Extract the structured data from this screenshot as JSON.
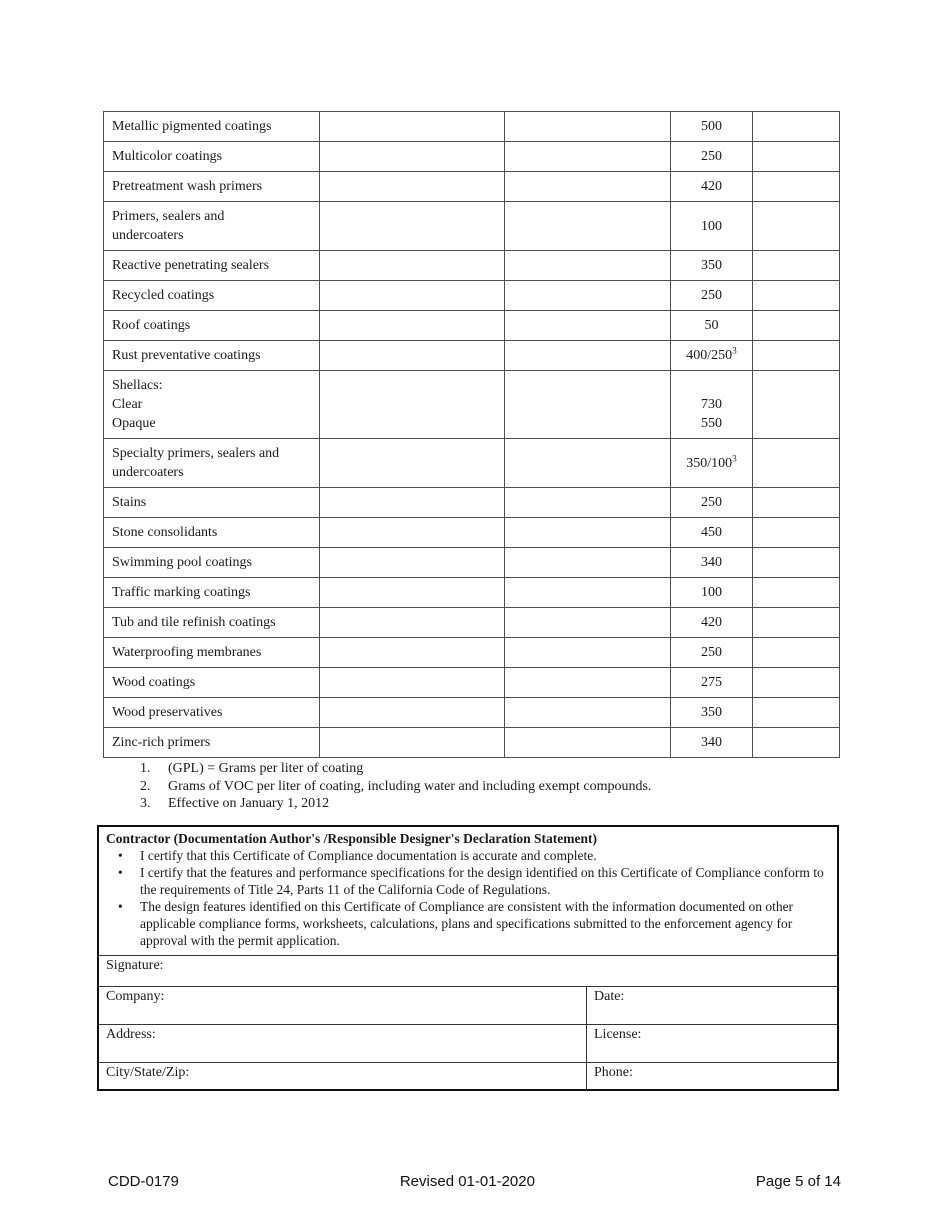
{
  "colors": {
    "page_bg": "#ffffff",
    "text": "#1a1a1a",
    "table_border": "#4f4f4f",
    "box_border": "#111111"
  },
  "table": {
    "rows": [
      {
        "name": "Metallic pigmented coatings",
        "value": "500"
      },
      {
        "name": "Multicolor coatings",
        "value": "250"
      },
      {
        "name": "Pretreatment wash primers",
        "value": "420"
      },
      {
        "name": "Primers, sealers and\nundercoaters",
        "value": "100"
      },
      {
        "name": "Reactive penetrating sealers",
        "value": "350"
      },
      {
        "name": "Recycled coatings",
        "value": "250"
      },
      {
        "name": "Roof coatings",
        "value": "50"
      },
      {
        "name": "Rust preventative coatings",
        "value": "400/250^3"
      },
      {
        "name": "Shellacs:\nClear\nOpaque",
        "value": "730\n550"
      },
      {
        "name": "Specialty primers, sealers and\nundercoaters",
        "value": "350/100^3"
      },
      {
        "name": "Stains",
        "value": "250"
      },
      {
        "name": "Stone consolidants",
        "value": "450"
      },
      {
        "name": "Swimming pool coatings",
        "value": "340"
      },
      {
        "name": "Traffic marking coatings",
        "value": "100"
      },
      {
        "name": "Tub and tile refinish coatings",
        "value": "420"
      },
      {
        "name": "Waterproofing membranes",
        "value": "250"
      },
      {
        "name": "Wood coatings",
        "value": "275"
      },
      {
        "name": "Wood preservatives",
        "value": "350"
      },
      {
        "name": "Zinc-rich primers",
        "value": "340"
      }
    ]
  },
  "footnotes": [
    {
      "num": "1.",
      "text": "(GPL) = Grams per liter of coating"
    },
    {
      "num": "2.",
      "text": "Grams of VOC per liter of coating, including water and including exempt compounds."
    },
    {
      "num": "3.",
      "text": "Effective on January 1, 2012"
    }
  ],
  "declaration": {
    "title": "Contractor (Documentation Author's /Responsible Designer's Declaration Statement)",
    "bullets": [
      "I certify that this Certificate of Compliance documentation is accurate and complete.",
      "I certify that the features and performance specifications for the design identified on this Certificate of Compliance conform to the requirements of Title 24, Parts 11 of the California Code of Regulations.",
      "The design features identified on this Certificate of Compliance are consistent with the information documented on other applicable compliance forms, worksheets, calculations, plans and specifications submitted to the enforcement agency for approval with the permit application."
    ],
    "fields": {
      "signature": "Signature:",
      "company": "Company:",
      "date": "Date:",
      "address": "Address:",
      "license": "License:",
      "city": "City/State/Zip:",
      "phone": "Phone:"
    }
  },
  "footer": {
    "form_number": "CDD-0179",
    "revised": "Revised 01-01-2020",
    "page": "Page 5 of 14"
  }
}
